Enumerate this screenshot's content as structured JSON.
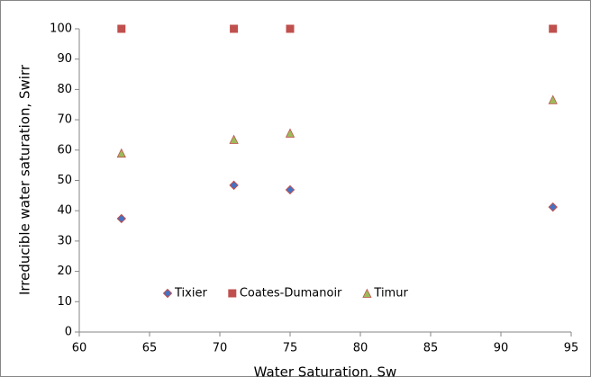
{
  "chart_data": {
    "type": "scatter",
    "xlabel": "Water Saturation, Sw",
    "ylabel": "Irreducible water saturation, Swirr",
    "xlim": [
      60,
      95
    ],
    "xticks": [
      60,
      65,
      70,
      75,
      80,
      85,
      90,
      95
    ],
    "ylim": [
      0,
      100
    ],
    "yticks": [
      0,
      10,
      20,
      30,
      40,
      50,
      60,
      70,
      80,
      90,
      100
    ],
    "legend": "bottom",
    "series": [
      {
        "name": "Tixier",
        "color": "#4472c4",
        "marker": "diamond",
        "x": [
          63,
          71,
          75,
          93.7
        ],
        "values": [
          37.4,
          48.4,
          46.9,
          41.2
        ]
      },
      {
        "name": "Coates-Dumanoir",
        "color": "#c0504d",
        "marker": "square",
        "x": [
          63,
          71,
          75,
          93.7
        ],
        "values": [
          100,
          100,
          100,
          100
        ]
      },
      {
        "name": "Timur",
        "color": "#9bbb59",
        "marker": "triangle",
        "x": [
          63,
          71,
          75,
          93.7
        ],
        "values": [
          59.0,
          63.5,
          65.6,
          76.6
        ]
      }
    ]
  }
}
